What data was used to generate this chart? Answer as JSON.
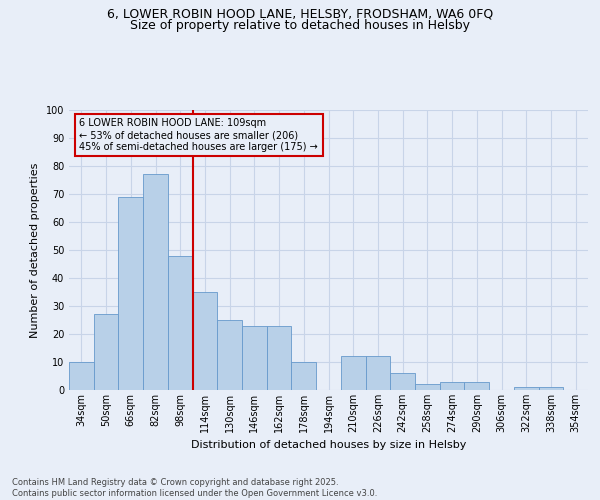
{
  "title1": "6, LOWER ROBIN HOOD LANE, HELSBY, FRODSHAM, WA6 0FQ",
  "title2": "Size of property relative to detached houses in Helsby",
  "xlabel": "Distribution of detached houses by size in Helsby",
  "ylabel": "Number of detached properties",
  "footer": "Contains HM Land Registry data © Crown copyright and database right 2025.\nContains public sector information licensed under the Open Government Licence v3.0.",
  "annotation_line1": "6 LOWER ROBIN HOOD LANE: 109sqm",
  "annotation_line2": "← 53% of detached houses are smaller (206)",
  "annotation_line3": "45% of semi-detached houses are larger (175) →",
  "vline_index": 5,
  "categories": [
    "34sqm",
    "50sqm",
    "66sqm",
    "82sqm",
    "98sqm",
    "114sqm",
    "130sqm",
    "146sqm",
    "162sqm",
    "178sqm",
    "194sqm",
    "210sqm",
    "226sqm",
    "242sqm",
    "258sqm",
    "274sqm",
    "290sqm",
    "306sqm",
    "322sqm",
    "338sqm",
    "354sqm"
  ],
  "values": [
    10,
    27,
    69,
    77,
    48,
    35,
    25,
    23,
    23,
    10,
    0,
    12,
    12,
    6,
    2,
    3,
    3,
    0,
    1,
    1,
    0
  ],
  "bar_color": "#b8d0e8",
  "bar_edge_color": "#6699cc",
  "vline_color": "#cc0000",
  "annotation_box_facecolor": "#e8eef8",
  "annotation_box_edgecolor": "#cc0000",
  "background_color": "#e8eef8",
  "grid_color": "#c8d4e8",
  "ylim": [
    0,
    100
  ],
  "yticks": [
    0,
    10,
    20,
    30,
    40,
    50,
    60,
    70,
    80,
    90,
    100
  ],
  "title_fontsize": 9,
  "ylabel_fontsize": 8,
  "xlabel_fontsize": 8,
  "tick_fontsize": 7,
  "ann_fontsize": 7,
  "footer_fontsize": 6
}
